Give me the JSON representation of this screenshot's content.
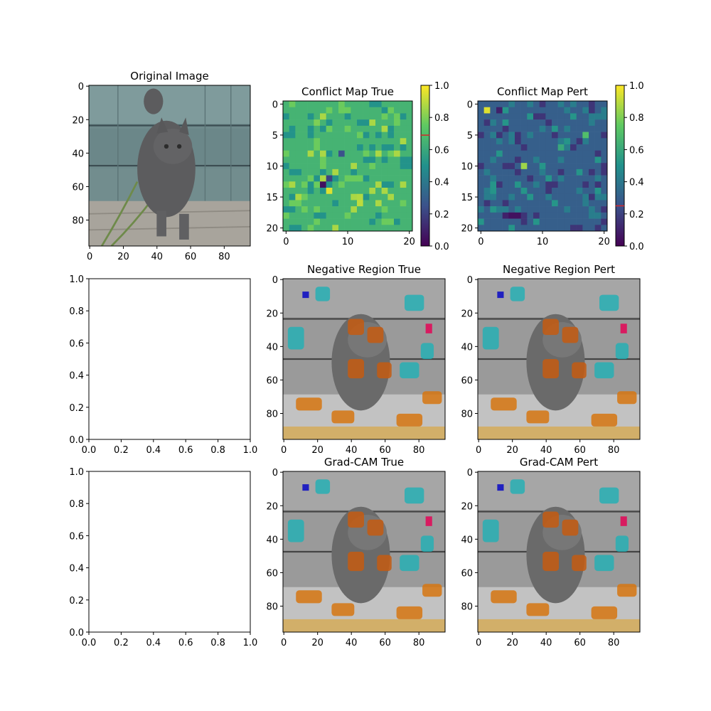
{
  "chart_data": [
    {
      "type": "image",
      "title": "Original Image",
      "content": "cat-photo",
      "xlim": [
        0,
        96
      ],
      "ylim": [
        96,
        0
      ],
      "xticks": [
        "0",
        "20",
        "40",
        "60",
        "80"
      ],
      "yticks": [
        "0",
        "20",
        "40",
        "60",
        "80"
      ]
    },
    {
      "type": "heatmap",
      "title": "Conflict Map True",
      "grid_size": 21,
      "xticks": [
        "0",
        "10",
        "20"
      ],
      "yticks": [
        "0",
        "5",
        "10",
        "15",
        "20"
      ],
      "base_value": 0.65,
      "colorbar": {
        "ticks": [
          "0.0",
          "0.2",
          "0.4",
          "0.6",
          "0.8",
          "1.0"
        ],
        "marker_value": 0.69
      },
      "highlight_cells": [
        {
          "row": 13,
          "col": 6,
          "value": 0.05
        },
        {
          "row": 14,
          "col": 7,
          "value": 0.95
        },
        {
          "row": 16,
          "col": 12,
          "value": 0.9
        },
        {
          "row": 15,
          "col": 12,
          "value": 0.88
        },
        {
          "row": 12,
          "col": 7,
          "value": 0.2
        },
        {
          "row": 8,
          "col": 9,
          "value": 0.25
        },
        {
          "row": 3,
          "col": 5,
          "value": 0.8
        }
      ]
    },
    {
      "type": "heatmap",
      "title": "Conflict Map Pert",
      "grid_size": 21,
      "xticks": [
        "0",
        "10",
        "20"
      ],
      "yticks": [
        "0",
        "5",
        "10",
        "15",
        "20"
      ],
      "base_value": 0.3,
      "colorbar": {
        "ticks": [
          "0.0",
          "0.2",
          "0.4",
          "0.6",
          "0.8",
          "1.0"
        ],
        "marker_value": 0.25
      },
      "highlight_cells": [
        {
          "row": 1,
          "col": 1,
          "value": 0.95
        },
        {
          "row": 10,
          "col": 7,
          "value": 0.85
        },
        {
          "row": 18,
          "col": 5,
          "value": 0.05
        },
        {
          "row": 18,
          "col": 6,
          "value": 0.05
        },
        {
          "row": 18,
          "col": 4,
          "value": 0.1
        },
        {
          "row": 1,
          "col": 3,
          "value": 0.1
        },
        {
          "row": 5,
          "col": 17,
          "value": 0.7
        },
        {
          "row": 7,
          "col": 13,
          "value": 0.6
        }
      ]
    },
    {
      "type": "empty",
      "title": "",
      "xticks": [
        "0.0",
        "0.2",
        "0.4",
        "0.6",
        "0.8",
        "1.0"
      ],
      "yticks": [
        "1.0",
        "0.8",
        "0.6",
        "0.4",
        "0.2",
        "0.0"
      ]
    },
    {
      "type": "image",
      "title": "Negative Region True",
      "content": "cat-overlay",
      "xticks": [
        "0",
        "20",
        "40",
        "60",
        "80"
      ],
      "yticks": [
        "0",
        "20",
        "40",
        "60",
        "80"
      ]
    },
    {
      "type": "image",
      "title": "Negative Region Pert",
      "content": "cat-overlay",
      "xticks": [
        "0",
        "20",
        "40",
        "60",
        "80"
      ],
      "yticks": [
        "0",
        "20",
        "40",
        "60",
        "80"
      ]
    },
    {
      "type": "empty",
      "title": "",
      "xticks": [
        "0.0",
        "0.2",
        "0.4",
        "0.6",
        "0.8",
        "1.0"
      ],
      "yticks": [
        "1.0",
        "0.8",
        "0.6",
        "0.4",
        "0.2",
        "0.0"
      ]
    },
    {
      "type": "image",
      "title": "Grad-CAM True",
      "content": "cat-overlay",
      "xticks": [
        "0",
        "20",
        "40",
        "60",
        "80"
      ],
      "yticks": [
        "0",
        "20",
        "40",
        "60",
        "80"
      ]
    },
    {
      "type": "image",
      "title": "Grad-CAM Pert",
      "content": "cat-overlay",
      "xticks": [
        "0",
        "20",
        "40",
        "60",
        "80"
      ],
      "yticks": [
        "0",
        "20",
        "40",
        "60",
        "80"
      ]
    }
  ]
}
